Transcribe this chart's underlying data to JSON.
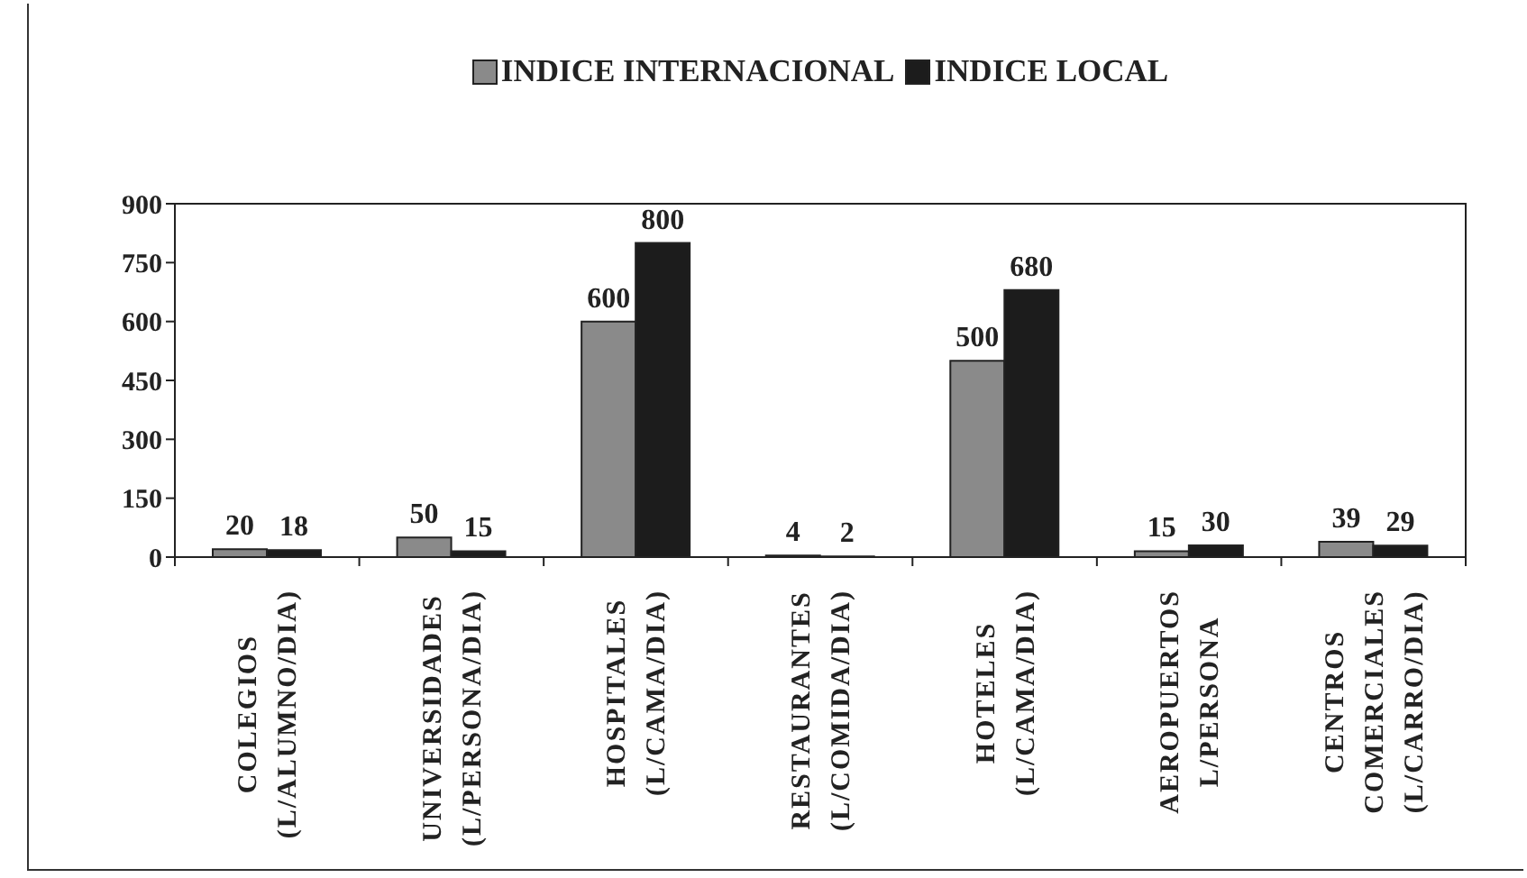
{
  "chart_data": {
    "type": "bar",
    "categories": [
      "COLEGIOS\n(L/ALUMNO/DIA)",
      "UNIVERSIDADES\n(L/PERSONA/DIA)",
      "HOSPITALES\n(L/CAMA/DIA)",
      "RESTAURANTES\n(L/COMIDA/DIA)",
      "HOTELES\n(L/CAMA/DIA)",
      "AEROPUERTOS\nL/PERSONA",
      "CENTROS\nCOMERCIALES\n(L/CARRO/DIA)"
    ],
    "series": [
      {
        "name": "INDICE INTERNACIONAL",
        "color": "#8a8a8a",
        "values": [
          20,
          50,
          600,
          4,
          500,
          15,
          39
        ]
      },
      {
        "name": "INDICE LOCAL",
        "color": "#1c1c1c",
        "values": [
          18,
          15,
          800,
          2,
          680,
          30,
          29
        ]
      }
    ],
    "ylim": [
      0,
      900
    ],
    "yticks": [
      0,
      150,
      300,
      450,
      600,
      750,
      900
    ],
    "data_labels": true,
    "legend": "top"
  }
}
